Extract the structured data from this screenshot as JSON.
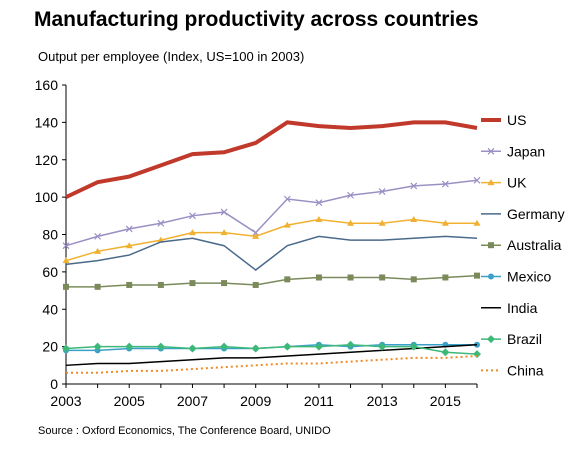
{
  "title": "Manufacturing productivity across countries",
  "subtitle": "Output per employee (Index, US=100 in 2003)",
  "source": "Source : Oxford Economics, The Conference Board, UNIDO",
  "chart_data": {
    "type": "line",
    "title": "Manufacturing productivity across countries",
    "ylabel": "Output per employee (Index, US=100 in 2003)",
    "xlabel": "",
    "x": [
      2003,
      2004,
      2005,
      2006,
      2007,
      2008,
      2009,
      2010,
      2011,
      2012,
      2013,
      2014,
      2015,
      2016
    ],
    "xticks": [
      "2003",
      "2005",
      "2007",
      "2009",
      "2011",
      "2013",
      "2015"
    ],
    "yticks": [
      "0",
      "20",
      "40",
      "60",
      "80",
      "100",
      "120",
      "140",
      "160"
    ],
    "ylim": [
      0,
      160
    ],
    "xlim": [
      2003,
      2016
    ],
    "grid": false,
    "legend": "right",
    "series": [
      {
        "name": "US",
        "color": "#c0392b",
        "marker": "none",
        "values": [
          100,
          108,
          111,
          117,
          123,
          124,
          129,
          140,
          138,
          137,
          138,
          140,
          140,
          137
        ]
      },
      {
        "name": "Japan",
        "color": "#9b8fc4",
        "marker": "x",
        "values": [
          74,
          79,
          83,
          86,
          90,
          92,
          81,
          99,
          97,
          101,
          103,
          106,
          107,
          109
        ]
      },
      {
        "name": "UK",
        "color": "#f0b030",
        "marker": "triangle",
        "values": [
          66,
          71,
          74,
          77,
          81,
          81,
          79,
          85,
          88,
          86,
          86,
          88,
          86,
          86
        ]
      },
      {
        "name": "Germany",
        "color": "#4a6a8a",
        "marker": "none",
        "values": [
          64,
          66,
          69,
          76,
          78,
          74,
          61,
          74,
          79,
          77,
          77,
          78,
          79,
          78
        ]
      },
      {
        "name": "Australia",
        "color": "#7a8a5a",
        "marker": "square",
        "values": [
          52,
          52,
          53,
          53,
          54,
          54,
          53,
          56,
          57,
          57,
          57,
          56,
          57,
          58
        ]
      },
      {
        "name": "Mexico",
        "color": "#3aa0c8",
        "marker": "circle",
        "values": [
          18,
          18,
          19,
          19,
          19,
          19,
          19,
          20,
          21,
          20,
          21,
          21,
          21,
          21
        ]
      },
      {
        "name": "India",
        "color": "#000000",
        "marker": "none",
        "values": [
          10,
          11,
          11,
          12,
          13,
          14,
          14,
          15,
          16,
          17,
          18,
          19,
          20,
          21
        ]
      },
      {
        "name": "Brazil",
        "color": "#3cb878",
        "marker": "diamond",
        "values": [
          19,
          20,
          20,
          20,
          19,
          20,
          19,
          20,
          20,
          21,
          20,
          20,
          17,
          16
        ]
      },
      {
        "name": "China",
        "color": "#f08a24",
        "marker": "none",
        "dashed": true,
        "values": [
          6,
          6,
          7,
          7,
          8,
          9,
          10,
          11,
          11,
          12,
          13,
          14,
          14,
          15
        ]
      }
    ]
  }
}
